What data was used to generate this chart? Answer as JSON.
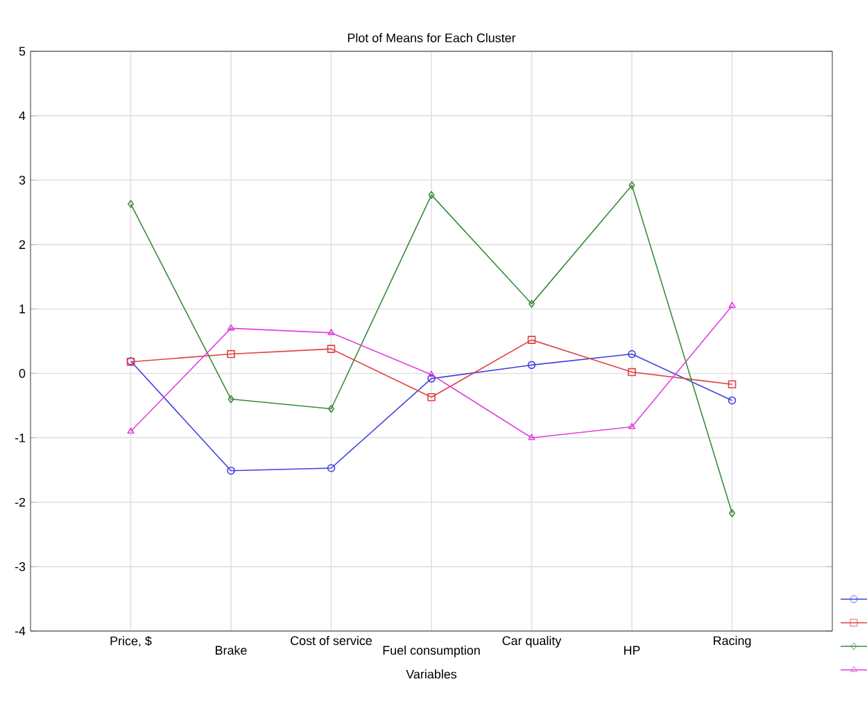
{
  "chart_data": {
    "type": "line",
    "title": "Plot of Means for Each Cluster",
    "xlabel": "Variables",
    "categories": [
      "Price, $",
      "Brake",
      "Cost of service",
      "Fuel consumption",
      "Car quality",
      "HP",
      "Racing"
    ],
    "series": [
      {
        "color": "#4040e0",
        "marker": "circle",
        "values": [
          0.19,
          -1.51,
          -1.47,
          -0.08,
          0.13,
          0.3,
          -0.42
        ]
      },
      {
        "color": "#e04040",
        "marker": "square",
        "values": [
          0.18,
          0.3,
          0.38,
          -0.37,
          0.52,
          0.02,
          -0.17
        ]
      },
      {
        "color": "#3a8a3a",
        "marker": "diamond",
        "values": [
          2.63,
          -0.4,
          -0.55,
          2.77,
          1.08,
          2.92,
          -2.17
        ]
      },
      {
        "color": "#e040e0",
        "marker": "triangle",
        "values": [
          -0.9,
          0.7,
          0.63,
          -0.02,
          -1.0,
          -0.83,
          1.05
        ]
      }
    ],
    "ylim": [
      -4,
      5
    ],
    "yticks": [
      -4,
      -3,
      -2,
      -1,
      0,
      1,
      2,
      3,
      4,
      5
    ],
    "grid": true,
    "line_style": "solid"
  }
}
